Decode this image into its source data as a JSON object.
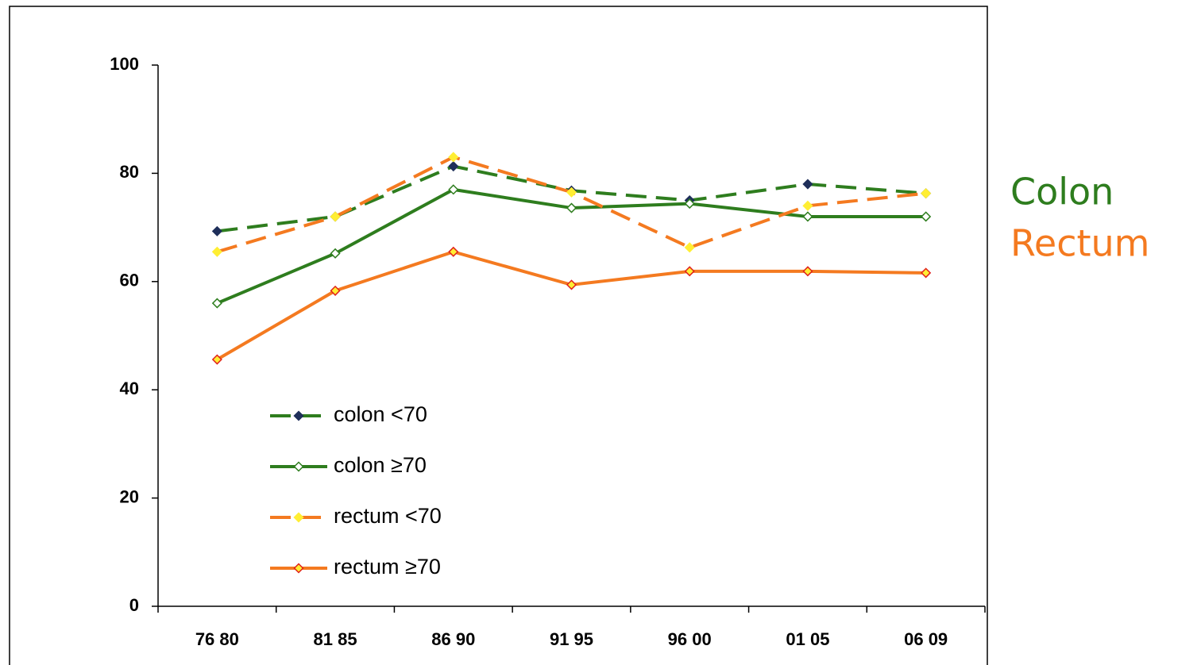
{
  "chart_data": {
    "type": "line",
    "categories": [
      "76 80",
      "81 85",
      "86 90",
      "91 95",
      "96 00",
      "01 05",
      "06 09"
    ],
    "series": [
      {
        "name": "colon  <70",
        "color": "#2e7d1e",
        "dashed": true,
        "marker_fill": "#1f2f5a",
        "marker_stroke": "#1f2f5a",
        "values": [
          69.3,
          72,
          81.3,
          76.8,
          75,
          78,
          76.3
        ]
      },
      {
        "name": "colon  ≥70",
        "color": "#2e7d1e",
        "dashed": false,
        "marker_fill": "#ffffff",
        "marker_stroke": "#2e7d1e",
        "values": [
          56,
          65.2,
          77,
          73.6,
          74.4,
          72,
          72
        ]
      },
      {
        "name": "rectum  <70",
        "color": "#f47a20",
        "dashed": true,
        "marker_fill": "#ffee33",
        "marker_stroke": "#ffee33",
        "values": [
          65.5,
          72,
          83,
          76.5,
          66.3,
          74,
          76.3
        ]
      },
      {
        "name": "rectum  ≥70",
        "color": "#f47a20",
        "dashed": false,
        "marker_fill": "#ffee33",
        "marker_stroke": "#e0201a",
        "values": [
          45.6,
          58.3,
          65.5,
          59.4,
          61.9,
          61.9,
          61.6
        ]
      }
    ],
    "ylim": [
      0,
      100
    ],
    "yticks": [
      0,
      20,
      40,
      60,
      80,
      100
    ],
    "annotations": [
      {
        "text": "Colon",
        "color": "#2e7d1e"
      },
      {
        "text": "Rectum",
        "color": "#f47a20"
      }
    ]
  }
}
